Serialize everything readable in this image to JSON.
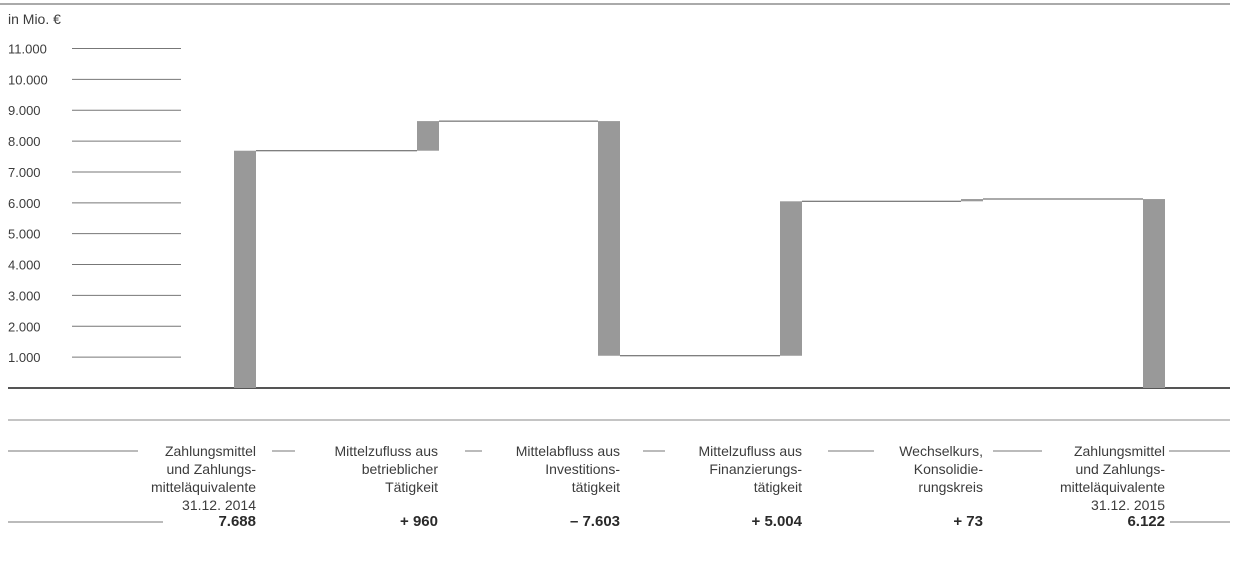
{
  "chart_data": {
    "type": "bar",
    "subtype": "waterfall",
    "ylabel": "in Mio. €",
    "ylim": [
      0,
      11000
    ],
    "yticks": [
      "11.000",
      "10.000",
      "9.000",
      "8.000",
      "7.000",
      "6.000",
      "5.000",
      "4.000",
      "3.000",
      "2.000",
      "1.000"
    ],
    "categories": [
      "Zahlungsmittel\nund Zahlungs-\nmitteläquivalente\n31.12. 2014",
      "Mittelzufluss aus\nbetrieblicher\nTätigkeit",
      "Mittelabfluss aus\nInvestitions-\ntätigkeit",
      "Mittelzufluss aus\nFinanzierungs-\ntätigkeit",
      "Wechselkurs,\nKonsolidie-\nrungskreis",
      "Zahlungsmittel\nund Zahlungs-\nmitteläquivalente\n31.12. 2015"
    ],
    "value_labels": [
      "7.688",
      "+ 960",
      "– 7.603",
      "+ 5.004",
      "+ 73",
      "6.122"
    ],
    "values": [
      7688,
      960,
      -7603,
      5004,
      73,
      6122
    ],
    "kinds": [
      "total",
      "delta",
      "delta",
      "delta",
      "delta",
      "total"
    ],
    "bar_color": "#999999"
  }
}
